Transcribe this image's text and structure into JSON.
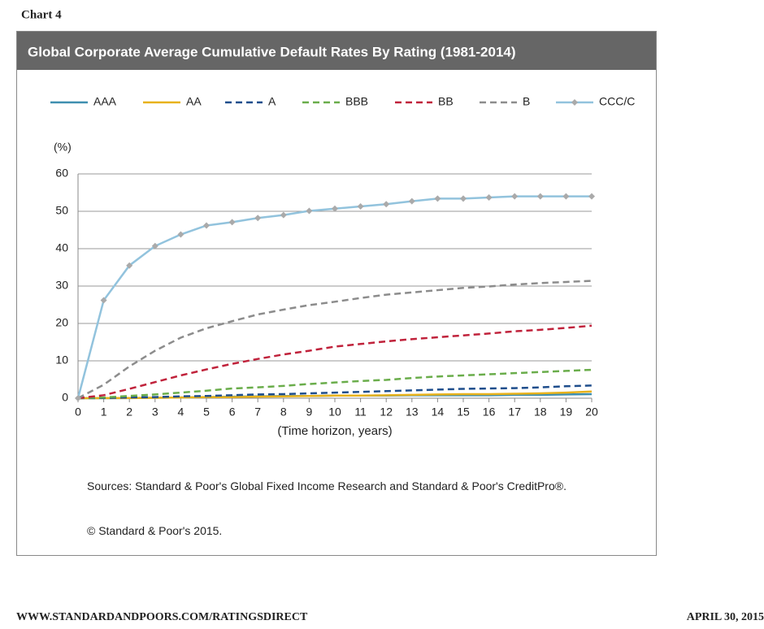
{
  "header": "Chart 4",
  "chart_data": {
    "type": "line",
    "title": "Global Corporate Average Cumulative Default Rates By Rating (1981-2014)",
    "y_label": "(%)",
    "x_label": "(Time horizon, years)",
    "x": [
      0,
      1,
      2,
      3,
      4,
      5,
      6,
      7,
      8,
      9,
      10,
      11,
      12,
      13,
      14,
      15,
      16,
      17,
      18,
      19,
      20
    ],
    "xlim": [
      0,
      20
    ],
    "xticks": [
      0,
      1,
      2,
      3,
      4,
      5,
      6,
      7,
      8,
      9,
      10,
      11,
      12,
      13,
      14,
      15,
      16,
      17,
      18,
      19,
      20
    ],
    "ylim": [
      0,
      60
    ],
    "yticks": [
      0,
      10,
      20,
      30,
      40,
      50,
      60
    ],
    "grid": true,
    "legend": "top",
    "series": [
      {
        "name": "AAA",
        "color": "#3f8fb0",
        "style": "solid",
        "values": [
          0,
          0,
          0.02,
          0.1,
          0.2,
          0.3,
          0.4,
          0.5,
          0.6,
          0.6,
          0.7,
          0.7,
          0.7,
          0.8,
          0.8,
          0.8,
          0.8,
          0.9,
          0.9,
          1.0,
          1.1
        ]
      },
      {
        "name": "AA",
        "color": "#e8b21c",
        "style": "solid",
        "values": [
          0,
          0.02,
          0.06,
          0.1,
          0.2,
          0.3,
          0.3,
          0.4,
          0.5,
          0.6,
          0.7,
          0.7,
          0.8,
          0.9,
          1.0,
          1.1,
          1.1,
          1.2,
          1.3,
          1.5,
          1.8
        ]
      },
      {
        "name": "A",
        "color": "#1f4e8c",
        "style": "dashed",
        "values": [
          0,
          0.06,
          0.2,
          0.3,
          0.5,
          0.6,
          0.8,
          1.0,
          1.1,
          1.3,
          1.5,
          1.7,
          1.9,
          2.1,
          2.3,
          2.5,
          2.6,
          2.7,
          2.9,
          3.2,
          3.4
        ]
      },
      {
        "name": "BBB",
        "color": "#6aad4b",
        "style": "dashed",
        "values": [
          0,
          0.2,
          0.6,
          1.0,
          1.5,
          2.0,
          2.6,
          2.9,
          3.3,
          3.8,
          4.2,
          4.6,
          4.9,
          5.4,
          5.8,
          6.1,
          6.4,
          6.7,
          7.0,
          7.3,
          7.6
        ]
      },
      {
        "name": "BB",
        "color": "#c0223b",
        "style": "dashed",
        "values": [
          0,
          0.8,
          2.5,
          4.3,
          6.1,
          7.7,
          9.2,
          10.5,
          11.7,
          12.7,
          13.8,
          14.5,
          15.2,
          15.8,
          16.3,
          16.8,
          17.3,
          17.9,
          18.3,
          18.8,
          19.4
        ]
      },
      {
        "name": "B",
        "color": "#8c8c8c",
        "style": "dashed",
        "values": [
          0,
          3.6,
          8.5,
          12.7,
          16.2,
          18.7,
          20.6,
          22.4,
          23.7,
          24.9,
          25.8,
          26.8,
          27.7,
          28.3,
          28.9,
          29.5,
          29.9,
          30.4,
          30.8,
          31.1,
          31.4
        ]
      },
      {
        "name": "CCC/C",
        "color": "#92c3dd",
        "style": "solid",
        "marker": "#aaaaaa",
        "values": [
          0,
          26.2,
          35.5,
          40.7,
          43.8,
          46.2,
          47.1,
          48.2,
          49.0,
          50.1,
          50.7,
          51.3,
          51.9,
          52.7,
          53.4,
          53.4,
          53.7,
          54.0,
          54.0,
          54.0,
          54.0
        ]
      }
    ]
  },
  "sources": "Sources: Standard & Poor's Global Fixed Income Research and Standard & Poor's CreditPro®.",
  "copyright": "© Standard & Poor's 2015.",
  "footer": {
    "url": "WWW.STANDARDANDPOORS.COM/RATINGSDIRECT",
    "date": "APRIL 30, 2015"
  }
}
